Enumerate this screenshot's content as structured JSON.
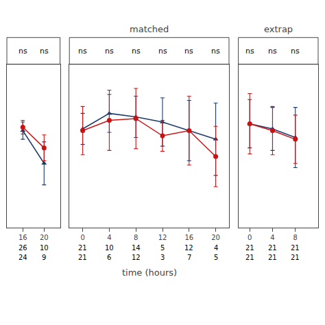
{
  "chart_data": [
    {
      "type": "line",
      "x": [
        16,
        20
      ],
      "xlim": [
        13,
        23
      ],
      "xticks": [
        16,
        20
      ],
      "ylim": [
        -0.55,
        1.35
      ],
      "yticks": [],
      "tick_labels": "x",
      "grid": false,
      "series": [
        {
          "color": "#1a3a6b",
          "marker": "triangle-up",
          "values": [
            0.58,
            0.2
          ],
          "yerr_lo": [
            0.1,
            0.25
          ],
          "yerr_hi": [
            0.1,
            0.25
          ]
        },
        {
          "color": "#cc1111",
          "marker": "circle",
          "values": [
            0.62,
            0.38
          ],
          "yerr_lo": [
            0.08,
            0.15
          ],
          "yerr_hi": [
            0.08,
            0.15
          ]
        }
      ],
      "annotations": [
        {
          "x": 16,
          "text": "ns"
        },
        {
          "x": 20,
          "text": "ns"
        }
      ],
      "sample_sizes": [
        [
          26,
          10
        ],
        [
          24,
          9
        ]
      ]
    },
    {
      "type": "line",
      "title": "matched",
      "xlabel": "time (hours)",
      "x": [
        0,
        4,
        8,
        12,
        16,
        20
      ],
      "xlim": [
        -2,
        22
      ],
      "xticks": [
        0,
        4,
        8,
        12,
        16,
        20
      ],
      "ylim": [
        -0.55,
        1.35
      ],
      "yticks": [],
      "tick_labels": "x",
      "grid": false,
      "series": [
        {
          "color": "#1a3a6b",
          "marker": "triangle-up",
          "values": [
            0.6,
            0.78,
            0.74,
            0.68,
            0.58,
            0.48
          ],
          "yerr_lo": [
            0.18,
            0.22,
            0.24,
            0.28,
            0.35,
            0.42
          ],
          "yerr_hi": [
            0.18,
            0.22,
            0.24,
            0.28,
            0.35,
            0.42
          ]
        },
        {
          "color": "#cc1111",
          "marker": "circle",
          "values": [
            0.58,
            0.7,
            0.72,
            0.52,
            0.58,
            0.28
          ],
          "yerr_lo": [
            0.28,
            0.35,
            0.35,
            0.18,
            0.4,
            0.35
          ],
          "yerr_hi": [
            0.28,
            0.35,
            0.35,
            0.18,
            0.4,
            0.35
          ]
        }
      ],
      "annotations": [
        {
          "x": 0,
          "text": "ns"
        },
        {
          "x": 4,
          "text": "ns"
        },
        {
          "x": 8,
          "text": "ns"
        },
        {
          "x": 12,
          "text": "ns"
        },
        {
          "x": 16,
          "text": "ns"
        },
        {
          "x": 20,
          "text": "ns"
        }
      ],
      "sample_sizes": [
        [
          21,
          10,
          14,
          5,
          12,
          4
        ],
        [
          21,
          6,
          12,
          3,
          7,
          5
        ]
      ]
    },
    {
      "type": "line",
      "title": "extrap",
      "x": [
        0,
        4,
        8
      ],
      "xlim": [
        -2,
        12
      ],
      "xticks": [
        0,
        4,
        8
      ],
      "ylim": [
        -0.55,
        1.35
      ],
      "yticks": [],
      "tick_labels": "x",
      "grid": false,
      "series": [
        {
          "color": "#1a3a6b",
          "marker": "triangle-up",
          "values": [
            0.66,
            0.6,
            0.5
          ],
          "yerr_lo": [
            0.28,
            0.25,
            0.35
          ],
          "yerr_hi": [
            0.28,
            0.25,
            0.35
          ]
        },
        {
          "color": "#cc1111",
          "marker": "circle",
          "values": [
            0.66,
            0.58,
            0.48
          ],
          "yerr_lo": [
            0.35,
            0.28,
            0.28
          ],
          "yerr_hi": [
            0.35,
            0.28,
            0.28
          ]
        }
      ],
      "annotations": [
        {
          "x": 0,
          "text": "ns"
        },
        {
          "x": 4,
          "text": "ns"
        },
        {
          "x": 8,
          "text": "ns"
        }
      ],
      "sample_sizes": [
        [
          21,
          21,
          21
        ],
        [
          21,
          21,
          21
        ]
      ]
    }
  ]
}
